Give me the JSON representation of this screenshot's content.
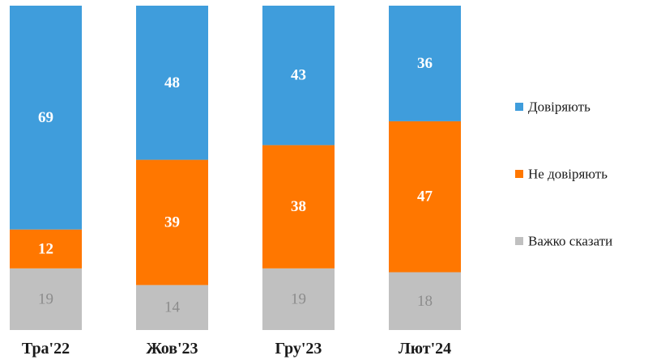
{
  "chart_data": {
    "type": "bar",
    "stacked": true,
    "categories": [
      "Тра'22",
      "Жов'23",
      "Гру'23",
      "Лют'24"
    ],
    "series": [
      {
        "name": "Важко сказати",
        "values": [
          19,
          14,
          19,
          18
        ],
        "color": "#c0c0c0",
        "label_style": "muted"
      },
      {
        "name": "Не довіряють",
        "values": [
          12,
          39,
          38,
          47
        ],
        "color": "#ff7700",
        "label_style": "bold"
      },
      {
        "name": "Довіряють",
        "values": [
          69,
          48,
          43,
          36
        ],
        "color": "#3f9ddc",
        "label_style": "bold"
      }
    ],
    "legend_order": [
      "Довіряють",
      "Не довіряють",
      "Важко сказати"
    ],
    "legend_position": "right",
    "ylim": [
      0,
      100
    ],
    "grid": false,
    "title": "",
    "xlabel": "",
    "ylabel": ""
  }
}
